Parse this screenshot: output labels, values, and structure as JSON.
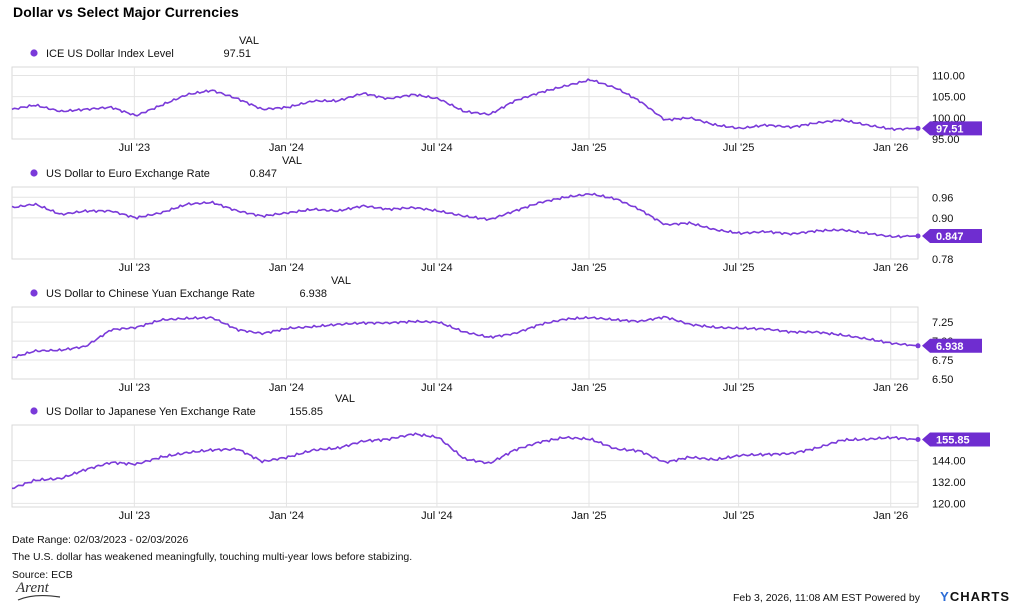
{
  "page": {
    "title": "Dollar vs Select Major Currencies",
    "footer": {
      "date_range": "Date Range: 02/03/2023 - 02/03/2026",
      "note": "The U.S. dollar has weakened meaningfully, touching multi-year lows before stabizing.",
      "source": "Source: ECB",
      "timestamp": "Feb 3, 2026, 11:08 AM EST Powered by",
      "brand_logo": "YCHARTS",
      "brand_logo_y": "Y",
      "brand_logo_rest": "CHARTS",
      "firm_logo": "Arent"
    },
    "colors": {
      "series": "#7a3ad9",
      "grid": "#e4e4e4",
      "badge": "#6f2dd0"
    }
  },
  "chart_data": [
    {
      "type": "line",
      "legend_header": "VAL",
      "series": [
        {
          "name": "ICE US Dollar Index Level",
          "latest": "97.51",
          "x": [
            "2023-02",
            "2023-03",
            "2023-04",
            "2023-05",
            "2023-06",
            "2023-07",
            "2023-08",
            "2023-09",
            "2023-10",
            "2023-11",
            "2023-12",
            "2024-01",
            "2024-02",
            "2024-03",
            "2024-04",
            "2024-05",
            "2024-06",
            "2024-07",
            "2024-08",
            "2024-09",
            "2024-10",
            "2024-11",
            "2024-12",
            "2025-01",
            "2025-02",
            "2025-03",
            "2025-04",
            "2025-05",
            "2025-06",
            "2025-07",
            "2025-08",
            "2025-09",
            "2025-10",
            "2025-11",
            "2025-12",
            "2026-01",
            "2026-02"
          ],
          "values": [
            102.0,
            103.0,
            101.5,
            102.0,
            102.5,
            100.5,
            103.0,
            105.5,
            106.5,
            104.5,
            102.0,
            102.5,
            104.0,
            104.0,
            105.8,
            104.5,
            105.5,
            104.5,
            101.5,
            100.8,
            104.0,
            106.0,
            107.5,
            109.0,
            107.0,
            104.0,
            99.5,
            100.0,
            98.3,
            97.5,
            98.3,
            97.8,
            98.8,
            99.5,
            98.3,
            97.3,
            97.51
          ]
        }
      ],
      "x_ticks": [
        "Jul '23",
        "Jan '24",
        "Jul '24",
        "Jan '25",
        "Jul '25",
        "Jan '26"
      ],
      "y_ticks": [
        "110.00",
        "105.00",
        "100.00",
        "95.00"
      ],
      "ylim": [
        95,
        112
      ]
    },
    {
      "type": "line",
      "legend_header": "VAL",
      "series": [
        {
          "name": "US Dollar to Euro Exchange Rate",
          "latest": "0.847",
          "x": [
            "2023-02",
            "2023-03",
            "2023-04",
            "2023-05",
            "2023-06",
            "2023-07",
            "2023-08",
            "2023-09",
            "2023-10",
            "2023-11",
            "2023-12",
            "2024-01",
            "2024-02",
            "2024-03",
            "2024-04",
            "2024-05",
            "2024-06",
            "2024-07",
            "2024-08",
            "2024-09",
            "2024-10",
            "2024-11",
            "2024-12",
            "2025-01",
            "2025-02",
            "2025-03",
            "2025-04",
            "2025-05",
            "2025-06",
            "2025-07",
            "2025-08",
            "2025-09",
            "2025-10",
            "2025-11",
            "2025-12",
            "2026-01",
            "2026-02"
          ],
          "values": [
            0.93,
            0.94,
            0.91,
            0.92,
            0.92,
            0.9,
            0.915,
            0.94,
            0.945,
            0.92,
            0.905,
            0.915,
            0.925,
            0.92,
            0.935,
            0.925,
            0.93,
            0.92,
            0.905,
            0.895,
            0.92,
            0.945,
            0.96,
            0.97,
            0.955,
            0.925,
            0.88,
            0.885,
            0.865,
            0.855,
            0.86,
            0.853,
            0.862,
            0.865,
            0.855,
            0.845,
            0.847
          ]
        }
      ],
      "x_ticks": [
        "Jul '23",
        "Jan '24",
        "Jul '24",
        "Jan '25",
        "Jul '25",
        "Jan '26"
      ],
      "y_ticks": [
        "0.96",
        "0.90",
        "0.78"
      ],
      "ylim": [
        0.78,
        0.99
      ]
    },
    {
      "type": "line",
      "legend_header": "VAL",
      "series": [
        {
          "name": "US Dollar to Chinese Yuan Exchange Rate",
          "latest": "6.938",
          "x": [
            "2023-02",
            "2023-03",
            "2023-04",
            "2023-05",
            "2023-06",
            "2023-07",
            "2023-08",
            "2023-09",
            "2023-10",
            "2023-11",
            "2023-12",
            "2024-01",
            "2024-02",
            "2024-03",
            "2024-04",
            "2024-05",
            "2024-06",
            "2024-07",
            "2024-08",
            "2024-09",
            "2024-10",
            "2024-11",
            "2024-12",
            "2025-01",
            "2025-02",
            "2025-03",
            "2025-04",
            "2025-05",
            "2025-06",
            "2025-07",
            "2025-08",
            "2025-09",
            "2025-10",
            "2025-11",
            "2025-12",
            "2026-01",
            "2026-02"
          ],
          "values": [
            6.78,
            6.87,
            6.88,
            6.93,
            7.15,
            7.18,
            7.28,
            7.3,
            7.31,
            7.15,
            7.1,
            7.17,
            7.19,
            7.22,
            7.24,
            7.24,
            7.26,
            7.25,
            7.12,
            7.05,
            7.1,
            7.22,
            7.29,
            7.31,
            7.28,
            7.26,
            7.32,
            7.22,
            7.18,
            7.17,
            7.16,
            7.12,
            7.12,
            7.08,
            7.03,
            6.97,
            6.938
          ]
        }
      ],
      "x_ticks": [
        "Jul '23",
        "Jan '24",
        "Jul '24",
        "Jan '25",
        "Jul '25",
        "Jan '26"
      ],
      "y_ticks": [
        "7.25",
        "7.00",
        "6.75",
        "6.50"
      ],
      "ylim": [
        6.5,
        7.45
      ]
    },
    {
      "type": "line",
      "legend_header": "VAL",
      "series": [
        {
          "name": "US Dollar to Japanese Yen Exchange Rate",
          "latest": "155.85",
          "x": [
            "2023-02",
            "2023-03",
            "2023-04",
            "2023-05",
            "2023-06",
            "2023-07",
            "2023-08",
            "2023-09",
            "2023-10",
            "2023-11",
            "2023-12",
            "2024-01",
            "2024-02",
            "2024-03",
            "2024-04",
            "2024-05",
            "2024-06",
            "2024-07",
            "2024-08",
            "2024-09",
            "2024-10",
            "2024-11",
            "2024-12",
            "2025-01",
            "2025-02",
            "2025-03",
            "2025-04",
            "2025-05",
            "2025-06",
            "2025-07",
            "2025-08",
            "2025-09",
            "2025-10",
            "2025-11",
            "2025-12",
            "2026-01",
            "2026-02"
          ],
          "values": [
            128.5,
            133.0,
            134.0,
            139.0,
            143.0,
            142.0,
            146.0,
            148.5,
            150.0,
            150.5,
            143.5,
            146.0,
            150.0,
            151.0,
            155.0,
            156.0,
            159.0,
            157.0,
            145.0,
            142.5,
            150.0,
            154.5,
            157.0,
            156.0,
            150.5,
            149.5,
            143.0,
            146.0,
            144.5,
            147.0,
            147.5,
            148.0,
            151.0,
            155.5,
            156.0,
            157.0,
            155.85
          ]
        }
      ],
      "x_ticks": [
        "Jul '23",
        "Jan '24",
        "Jul '24",
        "Jan '25",
        "Jul '25",
        "Jan '26"
      ],
      "y_ticks": [
        "144.00",
        "132.00",
        "120.00"
      ],
      "ylim": [
        118,
        164
      ]
    }
  ]
}
